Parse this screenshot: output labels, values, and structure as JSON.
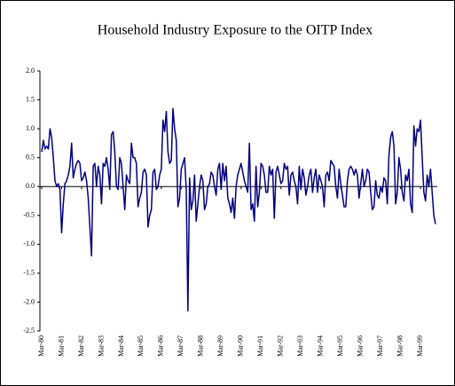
{
  "chart_data": {
    "type": "line",
    "title": "Household Industry Exposure to the OITP Index",
    "categories": [
      "Mar-80",
      null,
      null,
      null,
      null,
      null,
      null,
      null,
      null,
      null,
      null,
      null,
      "Mar-81",
      null,
      null,
      null,
      null,
      null,
      null,
      null,
      null,
      null,
      null,
      null,
      "Mar-82",
      null,
      null,
      null,
      null,
      null,
      null,
      null,
      null,
      null,
      null,
      null,
      "Mar-83",
      null,
      null,
      null,
      null,
      null,
      null,
      null,
      null,
      null,
      null,
      null,
      "Mar-84",
      null,
      null,
      null,
      null,
      null,
      null,
      null,
      null,
      null,
      null,
      null,
      "Mar-85",
      null,
      null,
      null,
      null,
      null,
      null,
      null,
      null,
      null,
      null,
      null,
      "Mar-86",
      null,
      null,
      null,
      null,
      null,
      null,
      null,
      null,
      null,
      null,
      null,
      "Mar-87",
      null,
      null,
      null,
      null,
      null,
      null,
      null,
      null,
      null,
      null,
      null,
      "Mar-88",
      null,
      null,
      null,
      null,
      null,
      null,
      null,
      null,
      null,
      null,
      null,
      "Mar-89",
      null,
      null,
      null,
      null,
      null,
      null,
      null,
      null,
      null,
      null,
      null,
      "Mar-90",
      null,
      null,
      null,
      null,
      null,
      null,
      null,
      null,
      null,
      null,
      null,
      "Mar-91",
      null,
      null,
      null,
      null,
      null,
      null,
      null,
      null,
      null,
      null,
      null,
      "Mar-92",
      null,
      null,
      null,
      null,
      null,
      null,
      null,
      null,
      null,
      null,
      null,
      "Mar-93",
      null,
      null,
      null,
      null,
      null,
      null,
      null,
      null,
      null,
      null,
      null,
      "Mar-94",
      null,
      null,
      null,
      null,
      null,
      null,
      null,
      null,
      null,
      null,
      null,
      "Mar-95",
      null,
      null,
      null,
      null,
      null,
      null,
      null,
      null,
      null,
      null,
      null,
      "Mar-96",
      null,
      null,
      null,
      null,
      null,
      null,
      null,
      null,
      null,
      null,
      null,
      "Mar-97",
      null,
      null,
      null,
      null,
      null,
      null,
      null,
      null,
      null,
      null,
      null,
      "Mar-98",
      null,
      null,
      null,
      null,
      null,
      null,
      null,
      null,
      null,
      null,
      null,
      "Mar-99",
      null,
      null,
      null,
      null,
      null,
      null,
      null,
      null,
      null
    ],
    "series": [
      {
        "color": "#000080",
        "values": [
          0.6,
          0.8,
          0.65,
          0.7,
          0.65,
          1.0,
          0.85,
          0.5,
          0.1,
          0.0,
          0.05,
          -0.05,
          -0.8,
          -0.3,
          0.05,
          0.1,
          0.2,
          0.35,
          0.75,
          0.15,
          0.3,
          0.4,
          0.45,
          0.4,
          0.1,
          0.15,
          0.25,
          0.1,
          -0.2,
          -0.7,
          -1.2,
          0.35,
          0.4,
          0.0,
          0.35,
          0.2,
          -0.3,
          0.4,
          0.35,
          0.5,
          0.3,
          -0.05,
          0.9,
          0.95,
          0.6,
          0.0,
          -0.05,
          0.5,
          0.4,
          0.0,
          -0.4,
          0.2,
          0.1,
          0.05,
          0.75,
          0.5,
          0.5,
          0.4,
          -0.35,
          -0.2,
          -0.1,
          0.25,
          0.3,
          0.2,
          -0.7,
          -0.5,
          -0.4,
          0.25,
          0.3,
          -0.05,
          0.0,
          0.2,
          0.3,
          1.15,
          0.95,
          1.3,
          0.6,
          0.4,
          0.45,
          1.35,
          1.0,
          0.8,
          -0.35,
          -0.2,
          0.3,
          0.4,
          0.5,
          -0.05,
          -2.15,
          0.15,
          -0.4,
          -0.25,
          0.2,
          -0.6,
          -0.3,
          0.0,
          0.2,
          0.1,
          -0.4,
          -0.3,
          0.0,
          0.05,
          0.25,
          0.2,
          0.0,
          -0.15,
          0.3,
          0.4,
          -0.05,
          0.4,
          0.1,
          0.35,
          -0.2,
          -0.3,
          -0.45,
          -0.2,
          -0.55,
          0.0,
          0.2,
          0.3,
          0.4,
          0.25,
          0.1,
          0.0,
          -0.1,
          0.75,
          -0.4,
          -0.3,
          -0.6,
          0.35,
          -0.35,
          -0.1,
          0.4,
          0.35,
          0.2,
          -0.1,
          -0.1,
          0.35,
          0.2,
          0.3,
          -0.55,
          0.25,
          0.35,
          0.2,
          0.05,
          0.1,
          0.4,
          0.3,
          0.35,
          -0.15,
          0.2,
          0.25,
          0.1,
          0.0,
          -0.3,
          0.35,
          -0.05,
          0.3,
          0.15,
          -0.15,
          0.0,
          0.2,
          0.3,
          -0.1,
          0.15,
          0.3,
          -0.1,
          0.2,
          0.1,
          0.0,
          -0.35,
          0.2,
          0.25,
          0.1,
          0.45,
          0.4,
          0.35,
          0.0,
          -0.2,
          0.3,
          0.05,
          -0.15,
          -0.35,
          -0.35,
          0.1,
          0.3,
          0.35,
          0.3,
          0.2,
          0.3,
          0.2,
          -0.2,
          0.05,
          0.3,
          0.0,
          0.1,
          0.3,
          0.25,
          -0.1,
          -0.4,
          -0.35,
          0.1,
          -0.15,
          -0.2,
          0.0,
          -0.1,
          0.15,
          0.1,
          -0.3,
          0.55,
          0.85,
          0.95,
          0.7,
          -0.3,
          -0.1,
          0.5,
          0.3,
          -0.1,
          -0.25,
          0.2,
          0.1,
          0.3,
          -0.3,
          -0.45,
          1.05,
          0.7,
          1.0,
          0.95,
          1.15,
          0.5,
          -0.1,
          -0.25,
          0.2,
          0.0,
          0.3,
          -0.1,
          -0.5,
          -0.65
        ]
      }
    ],
    "ylim": [
      -2.5,
      2.0
    ],
    "yticks": [
      {
        "value": -2.5,
        "label": "-2.5"
      },
      {
        "value": -2,
        "label": "-2.0"
      },
      {
        "value": -1.5,
        "label": "-1.5"
      },
      {
        "value": -1,
        "label": "-1.0"
      },
      {
        "value": -0.5,
        "label": "-0.5"
      },
      {
        "value": 0,
        "label": "0.0"
      },
      {
        "value": 0.5,
        "label": "0.5"
      },
      {
        "value": 1,
        "label": "1.0"
      },
      {
        "value": 1.5,
        "label": "1.5"
      },
      {
        "value": 2,
        "label": "2.0"
      }
    ]
  }
}
